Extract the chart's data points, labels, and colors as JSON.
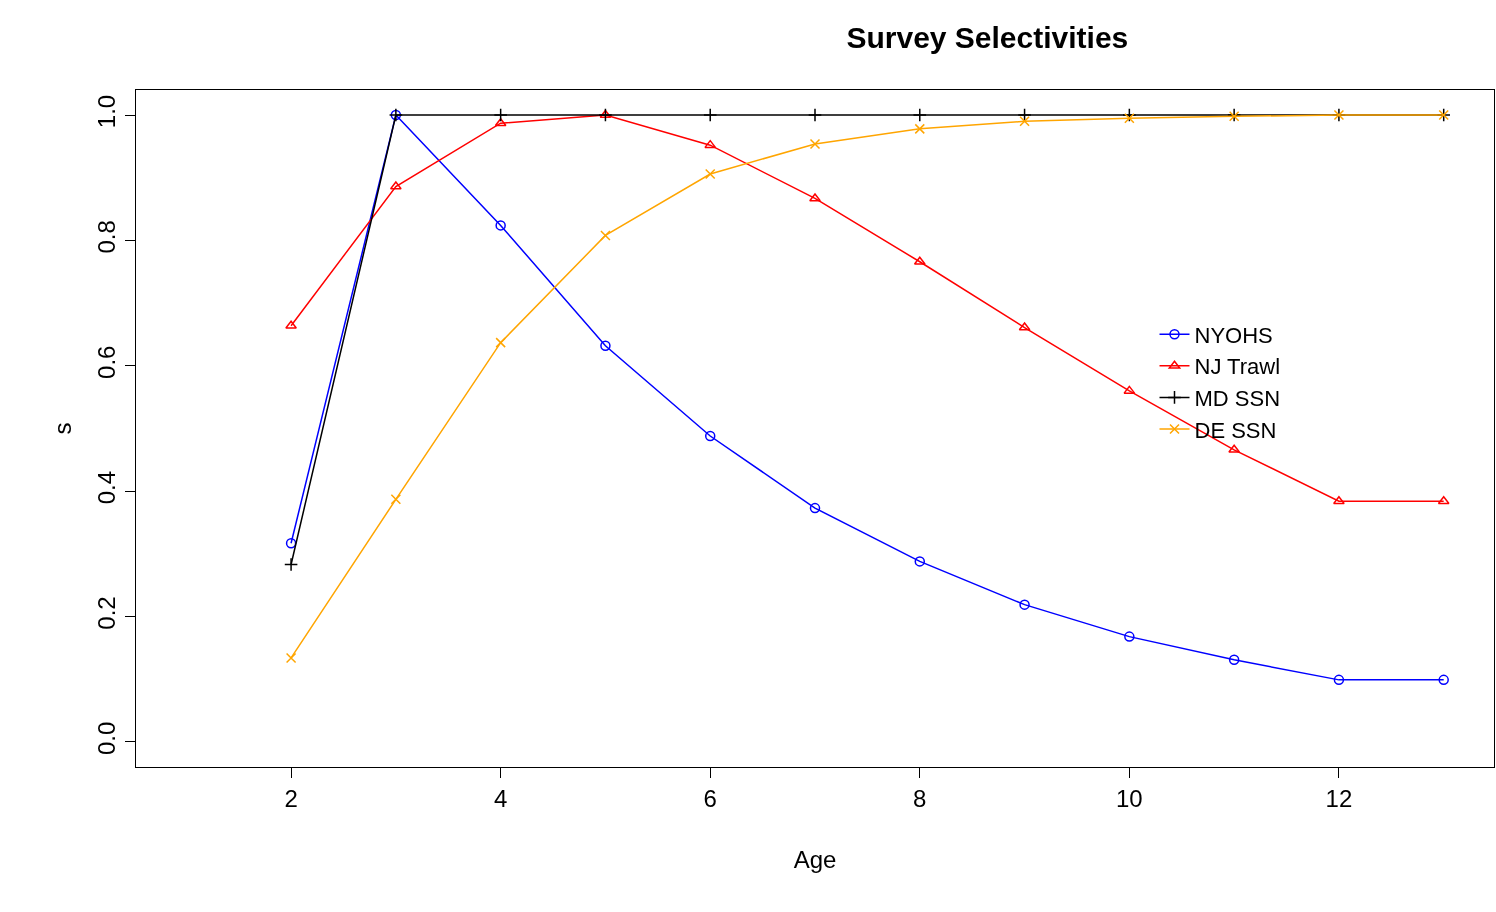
{
  "chart_data": {
    "type": "line",
    "title": "Survey Selectivities",
    "xlabel": "Age",
    "ylabel": "s",
    "x": [
      2,
      3,
      4,
      5,
      6,
      7,
      8,
      9,
      10,
      11,
      12,
      13
    ],
    "series": [
      {
        "name": "NYOHS",
        "color": "#0000ff",
        "marker": "circle",
        "values": [
          0.317,
          1.0,
          0.824,
          0.632,
          0.488,
          0.373,
          0.288,
          0.219,
          0.168,
          0.131,
          0.099,
          0.099
        ]
      },
      {
        "name": "NJ Trawl",
        "color": "#ff0000",
        "marker": "triangle",
        "values": [
          0.664,
          0.886,
          0.987,
          1.0,
          0.952,
          0.867,
          0.766,
          0.661,
          0.56,
          0.466,
          0.384,
          0.384
        ]
      },
      {
        "name": "MD SSN",
        "color": "#000000",
        "marker": "cross",
        "values": [
          0.283,
          1.0,
          1.0,
          1.0,
          1.0,
          1.0,
          1.0,
          1.0,
          1.0,
          1.0,
          1.0,
          1.0
        ]
      },
      {
        "name": "DE SSN",
        "color": "#ffa500",
        "marker": "x",
        "values": [
          0.134,
          0.387,
          0.637,
          0.808,
          0.906,
          0.954,
          0.978,
          0.99,
          0.995,
          0.998,
          1.0,
          1.0
        ]
      }
    ],
    "xlim": [
      0.52,
      13.48
    ],
    "ylim": [
      -0.04,
      1.04
    ],
    "xticks": [
      2,
      4,
      6,
      8,
      10,
      12
    ],
    "yticks": [
      {
        "value": 0,
        "label": "0.0"
      },
      {
        "value": 0.2,
        "label": "0.2"
      },
      {
        "value": 0.4,
        "label": "0.4"
      },
      {
        "value": 0.6,
        "label": "0.6"
      },
      {
        "value": 0.8,
        "label": "0.8"
      },
      {
        "value": 1,
        "label": "1.0"
      }
    ],
    "legend": "right"
  }
}
